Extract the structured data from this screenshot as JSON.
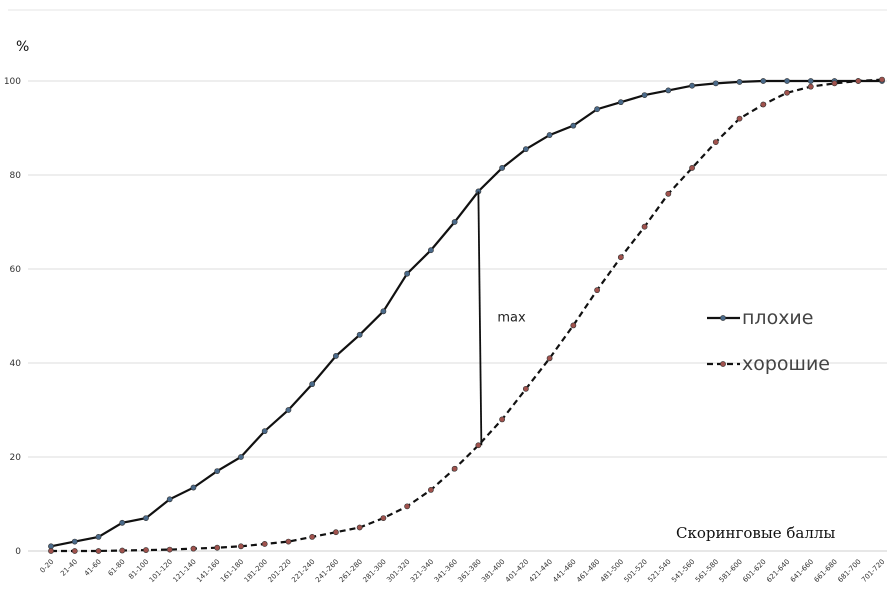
{
  "chart_data": {
    "type": "line",
    "ylabel": "%",
    "xlabel": "Скоринговые баллы",
    "yticks": [
      0,
      20,
      40,
      60,
      80,
      100
    ],
    "ylim": [
      0,
      100
    ],
    "grid": "horizontal",
    "legend_position": "right",
    "categories": [
      "0-20",
      "21-40",
      "41-60",
      "61-80",
      "81-100",
      "101-120",
      "121-140",
      "141-160",
      "161-180",
      "181-200",
      "201-220",
      "221-240",
      "241-260",
      "261-280",
      "281-300",
      "301-320",
      "321-340",
      "341-360",
      "361-380",
      "381-400",
      "401-420",
      "421-440",
      "441-460",
      "461-480",
      "481-500",
      "501-520",
      "521-540",
      "541-560",
      "561-580",
      "581-600",
      "601-620",
      "621-640",
      "641-660",
      "661-680",
      "681-700",
      "701-720"
    ],
    "series": [
      {
        "name": "плохие",
        "color": "#111111",
        "dash": "solid",
        "marker_color": "#4a6a8a",
        "values": [
          1,
          2,
          3,
          6,
          7,
          11,
          13.5,
          17,
          20,
          25.5,
          30,
          35.5,
          41.5,
          46,
          51,
          59,
          64,
          70,
          76.5,
          81.5,
          85.5,
          88.5,
          90.5,
          94,
          95.5,
          97,
          98,
          99,
          99.5,
          99.8,
          100,
          100,
          100,
          100,
          100,
          100
        ]
      },
      {
        "name": "хорошие",
        "color": "#111111",
        "dash": "dashed",
        "marker_color": "#a0524d",
        "values": [
          0,
          0,
          0,
          0.1,
          0.2,
          0.3,
          0.5,
          0.7,
          1,
          1.5,
          2,
          3,
          4,
          5,
          7,
          9.5,
          13,
          17.5,
          22.5,
          28,
          34.5,
          41,
          48,
          55.5,
          62.5,
          69,
          76,
          81.5,
          87,
          92,
          95,
          97.5,
          98.8,
          99.5,
          100,
          100.3
        ]
      }
    ],
    "annotations": [
      {
        "text": "max",
        "category": "361-380",
        "from": 22.5,
        "to": 76.5
      }
    ]
  }
}
